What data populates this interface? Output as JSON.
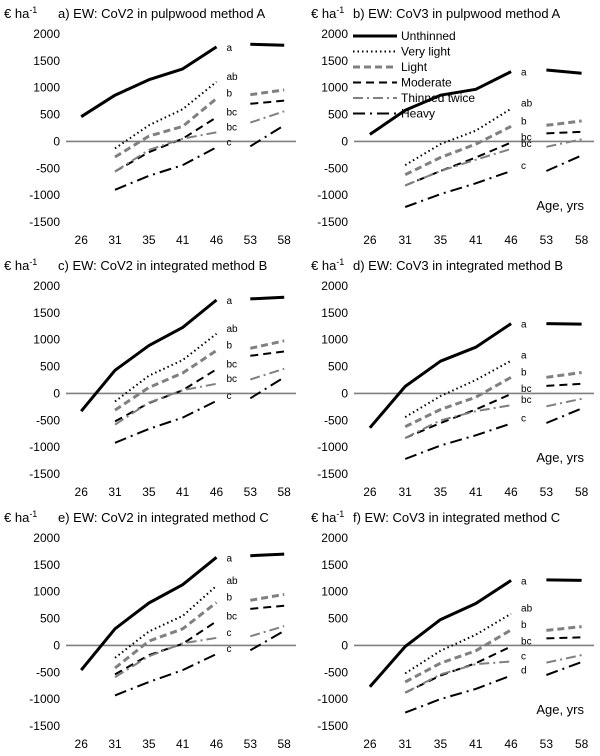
{
  "figure": {
    "unit_label": "€ ha",
    "unit_exponent": "-1",
    "age_label": "Age, yrs",
    "legend_entries": [
      "Unthinned",
      "Very light",
      "Light",
      "Moderate",
      "Thinned twice",
      "Heavy"
    ]
  },
  "chart_data": [
    {
      "type": "line",
      "title": "a) EW: CoV2 in pulpwood  method A",
      "ylabel": "€ ha-1",
      "categories": [
        "26",
        "31",
        "35",
        "41",
        "46",
        "53",
        "58"
      ],
      "ylim": [
        -1500,
        2000
      ],
      "yticks": [
        -1500,
        -1000,
        -500,
        0,
        500,
        1000,
        1500,
        2000
      ],
      "series": [
        {
          "name": "Unthinned",
          "values": [
            460,
            860,
            1150,
            1350,
            1760,
            1810,
            1790
          ],
          "end_label": "a"
        },
        {
          "name": "Very light",
          "values": [
            null,
            -130,
            300,
            600,
            1110,
            null,
            null
          ],
          "end_label": "ab"
        },
        {
          "name": "Light",
          "values": [
            null,
            -290,
            100,
            280,
            800,
            870,
            960
          ],
          "end_label": "b"
        },
        {
          "name": "Moderate",
          "values": [
            null,
            -560,
            -200,
            50,
            450,
            700,
            760
          ],
          "end_label": "bc"
        },
        {
          "name": "Thinned twice",
          "values": [
            null,
            -560,
            -160,
            50,
            170,
            350,
            560
          ],
          "end_label": "bc"
        },
        {
          "name": "Heavy",
          "values": [
            null,
            -900,
            -640,
            -440,
            -110,
            -90,
            300
          ],
          "end_label": "c"
        }
      ]
    },
    {
      "type": "line",
      "title": "b) EW: CoV3 in pulpwood  method A",
      "ylabel": "€ ha-1",
      "categories": [
        "26",
        "31",
        "35",
        "41",
        "46",
        "53",
        "58"
      ],
      "ylim": [
        -1500,
        2000
      ],
      "yticks": [
        -1500,
        -1000,
        -500,
        0,
        500,
        1000,
        1500,
        2000
      ],
      "legend": "top-left",
      "series": [
        {
          "name": "Unthinned",
          "values": [
            130,
            580,
            860,
            970,
            1300,
            1330,
            1270
          ],
          "end_label": "a"
        },
        {
          "name": "Very light",
          "values": [
            null,
            -440,
            -50,
            200,
            610,
            null,
            null
          ],
          "end_label": "ab"
        },
        {
          "name": "Light",
          "values": [
            null,
            -620,
            -300,
            -50,
            280,
            300,
            380
          ],
          "end_label": "b"
        },
        {
          "name": "Moderate",
          "values": [
            null,
            -820,
            -550,
            -300,
            -20,
            150,
            180
          ],
          "end_label": "bc"
        },
        {
          "name": "Thinned twice",
          "values": [
            null,
            -820,
            -550,
            -340,
            -140,
            -100,
            40
          ],
          "end_label": "bc"
        },
        {
          "name": "Heavy",
          "values": [
            null,
            -1220,
            -980,
            -780,
            -550,
            -550,
            -260
          ],
          "end_label": "c"
        }
      ]
    },
    {
      "type": "line",
      "title": "c) EW: CoV2 in integrated method B",
      "ylabel": "€ ha-1",
      "categories": [
        "26",
        "31",
        "35",
        "41",
        "46",
        "53",
        "58"
      ],
      "ylim": [
        -1500,
        2000
      ],
      "yticks": [
        -1500,
        -1000,
        -500,
        0,
        500,
        1000,
        1500,
        2000
      ],
      "series": [
        {
          "name": "Unthinned",
          "values": [
            -330,
            430,
            890,
            1230,
            1740,
            1760,
            1790
          ],
          "end_label": "a"
        },
        {
          "name": "Very light",
          "values": [
            null,
            -150,
            330,
            620,
            1110,
            null,
            null
          ],
          "end_label": "ab"
        },
        {
          "name": "Light",
          "values": [
            null,
            -310,
            110,
            380,
            800,
            840,
            980
          ],
          "end_label": "b"
        },
        {
          "name": "Moderate",
          "values": [
            null,
            -520,
            -180,
            60,
            450,
            700,
            780
          ],
          "end_label": "bc"
        },
        {
          "name": "Thinned twice",
          "values": [
            null,
            -580,
            -170,
            60,
            180,
            260,
            460
          ],
          "end_label": "bc"
        },
        {
          "name": "Heavy",
          "values": [
            null,
            -920,
            -660,
            -450,
            -140,
            -90,
            300
          ],
          "end_label": "c"
        }
      ]
    },
    {
      "type": "line",
      "title": "d) EW: CoV3 in integrated method B",
      "ylabel": "€ ha-1",
      "categories": [
        "26",
        "31",
        "35",
        "41",
        "46",
        "53",
        "58"
      ],
      "ylim": [
        -1500,
        2000
      ],
      "yticks": [
        -1500,
        -1000,
        -500,
        0,
        500,
        1000,
        1500,
        2000
      ],
      "series": [
        {
          "name": "Unthinned",
          "values": [
            -640,
            130,
            600,
            860,
            1300,
            1300,
            1290
          ],
          "end_label": "a"
        },
        {
          "name": "Very light",
          "values": [
            null,
            -440,
            -50,
            250,
            610,
            null,
            null
          ],
          "end_label": "a"
        },
        {
          "name": "Light",
          "values": [
            null,
            -620,
            -300,
            -70,
            300,
            300,
            390
          ],
          "end_label": "b"
        },
        {
          "name": "Moderate",
          "values": [
            null,
            -830,
            -550,
            -300,
            -10,
            140,
            180
          ],
          "end_label": "bc"
        },
        {
          "name": "Thinned twice",
          "values": [
            null,
            -830,
            -500,
            -330,
            -220,
            -240,
            -100
          ],
          "end_label": "bc"
        },
        {
          "name": "Heavy",
          "values": [
            null,
            -1220,
            -970,
            -780,
            -560,
            -550,
            -280
          ],
          "end_label": "c"
        }
      ]
    },
    {
      "type": "line",
      "title": "e) EW: CoV2 in integrated method C",
      "ylabel": "€ ha-1",
      "categories": [
        "26",
        "31",
        "35",
        "41",
        "46",
        "53",
        "58"
      ],
      "ylim": [
        -1500,
        2000
      ],
      "yticks": [
        -1500,
        -1000,
        -500,
        0,
        500,
        1000,
        1500,
        2000
      ],
      "series": [
        {
          "name": "Unthinned",
          "values": [
            -460,
            310,
            790,
            1130,
            1640,
            1670,
            1700
          ],
          "end_label": "a"
        },
        {
          "name": "Very light",
          "values": [
            null,
            -230,
            260,
            550,
            1110,
            null,
            null
          ],
          "end_label": "ab"
        },
        {
          "name": "Light",
          "values": [
            null,
            -420,
            80,
            310,
            800,
            840,
            950
          ],
          "end_label": "b"
        },
        {
          "name": "Moderate",
          "values": [
            null,
            -540,
            -180,
            30,
            450,
            680,
            740
          ],
          "end_label": "bc"
        },
        {
          "name": "Thinned twice",
          "values": [
            null,
            -590,
            -200,
            40,
            140,
            170,
            360
          ],
          "end_label": "c"
        },
        {
          "name": "Heavy",
          "values": [
            null,
            -930,
            -680,
            -460,
            -160,
            -90,
            270
          ],
          "end_label": "c"
        }
      ]
    },
    {
      "type": "line",
      "title": "f) EW: CoV3 in integrated method C",
      "ylabel": "€ ha-1",
      "categories": [
        "26",
        "31",
        "35",
        "41",
        "46",
        "53",
        "58"
      ],
      "ylim": [
        -1500,
        2000
      ],
      "yticks": [
        -1500,
        -1000,
        -500,
        0,
        500,
        1000,
        1500,
        2000
      ],
      "series": [
        {
          "name": "Unthinned",
          "values": [
            -770,
            -20,
            480,
            780,
            1210,
            1220,
            1210
          ],
          "end_label": "a"
        },
        {
          "name": "Very light",
          "values": [
            null,
            -520,
            -100,
            200,
            590,
            null,
            null
          ],
          "end_label": "ab"
        },
        {
          "name": "Light",
          "values": [
            null,
            -680,
            -330,
            -100,
            290,
            280,
            350
          ],
          "end_label": "b"
        },
        {
          "name": "Moderate",
          "values": [
            null,
            -880,
            -560,
            -330,
            -20,
            130,
            150
          ],
          "end_label": "bc"
        },
        {
          "name": "Thinned twice",
          "values": [
            null,
            -880,
            -540,
            -350,
            -300,
            -320,
            -180
          ],
          "end_label": "c"
        },
        {
          "name": "Heavy",
          "values": [
            null,
            -1250,
            -1000,
            -810,
            -560,
            -550,
            -310
          ],
          "end_label": "d"
        }
      ]
    }
  ]
}
